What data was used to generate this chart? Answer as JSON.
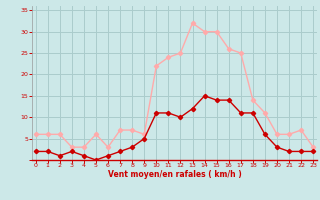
{
  "hours": [
    0,
    1,
    2,
    3,
    4,
    5,
    6,
    7,
    8,
    9,
    10,
    11,
    12,
    13,
    14,
    15,
    16,
    17,
    18,
    19,
    20,
    21,
    22,
    23
  ],
  "vent_moyen": [
    2,
    2,
    1,
    2,
    1,
    0,
    1,
    2,
    3,
    5,
    11,
    11,
    10,
    12,
    15,
    14,
    14,
    11,
    11,
    6,
    3,
    2,
    2,
    2
  ],
  "rafales": [
    6,
    6,
    6,
    3,
    3,
    6,
    3,
    7,
    7,
    6,
    22,
    24,
    25,
    32,
    30,
    30,
    26,
    25,
    14,
    11,
    6,
    6,
    7,
    3
  ],
  "line_moyen_color": "#cc0000",
  "line_rafales_color": "#ffaaaa",
  "bg_color": "#cce8e8",
  "grid_color": "#aacccc",
  "tick_color": "#cc0000",
  "xlabel": "Vent moyen/en rafales ( km/h )",
  "xlabel_color": "#cc0000",
  "ylabel_ticks": [
    0,
    5,
    10,
    15,
    20,
    25,
    30,
    35
  ],
  "ylim": [
    0,
    36
  ],
  "xlim": [
    -0.3,
    23.3
  ]
}
